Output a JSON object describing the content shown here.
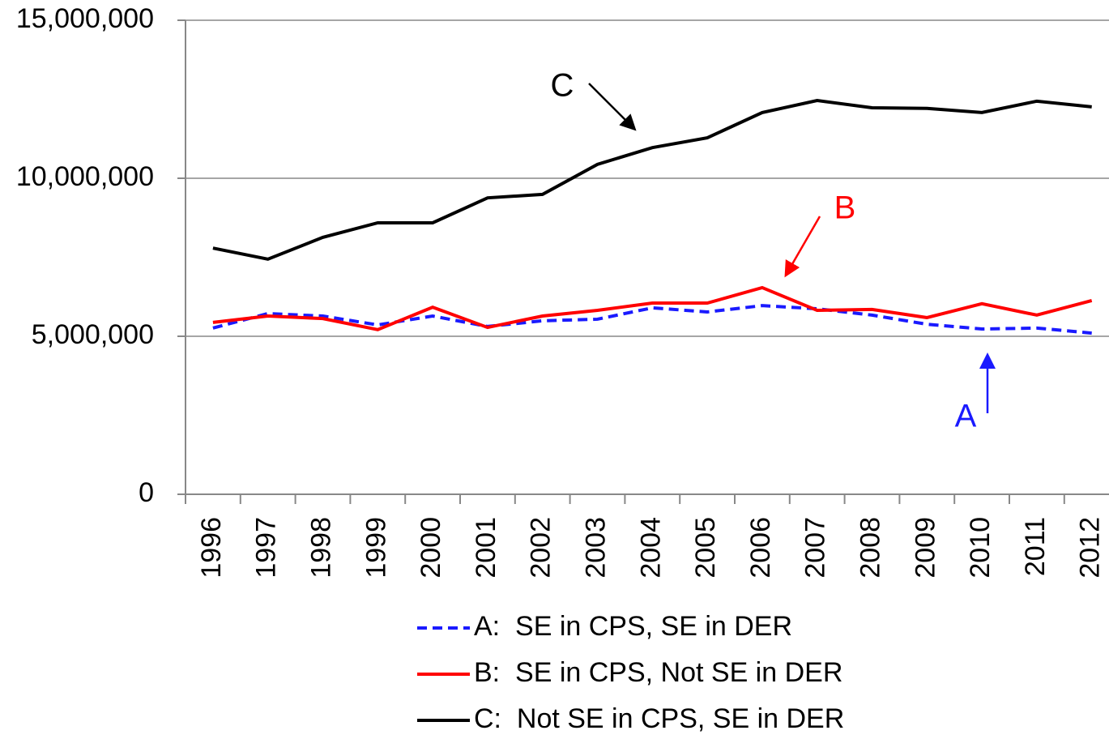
{
  "chart_data": {
    "type": "line",
    "categories": [
      "1996",
      "1997",
      "1998",
      "1999",
      "2000",
      "2001",
      "2002",
      "2003",
      "2004",
      "2005",
      "2006",
      "2007",
      "2008",
      "2009",
      "2010",
      "2011",
      "2012"
    ],
    "series": [
      {
        "name": "A:  SE in CPS, SE in DER",
        "color": "#1a1aff",
        "style": "dashed",
        "values": [
          5260000,
          5720000,
          5640000,
          5360000,
          5640000,
          5310000,
          5490000,
          5540000,
          5900000,
          5770000,
          5970000,
          5870000,
          5670000,
          5380000,
          5230000,
          5260000,
          5100000
        ]
      },
      {
        "name": "B:  SE in CPS, Not SE in DER",
        "color": "#ff0000",
        "style": "solid",
        "values": [
          5440000,
          5640000,
          5560000,
          5210000,
          5920000,
          5280000,
          5640000,
          5820000,
          6050000,
          6050000,
          6540000,
          5820000,
          5850000,
          5590000,
          6030000,
          5670000,
          6130000
        ]
      },
      {
        "name": "C:  Not SE in CPS, SE in DER",
        "color": "#000000",
        "style": "solid",
        "values": [
          7790000,
          7440000,
          8130000,
          8590000,
          8590000,
          9380000,
          9490000,
          10440000,
          10970000,
          11280000,
          12080000,
          12460000,
          12230000,
          12210000,
          12080000,
          12440000,
          12260000
        ]
      }
    ],
    "ylim": [
      0,
      15000000
    ],
    "yticks": [
      0,
      {
        "value": 5000000,
        "label": "5,000,000"
      },
      {
        "value": 10000000,
        "label": "10,000,000"
      },
      {
        "value": 15000000,
        "label": "15,000,000"
      }
    ],
    "grid": true,
    "annotations": [
      {
        "text": "C",
        "color": "#000000"
      },
      {
        "text": "B",
        "color": "#ff0000"
      },
      {
        "text": "A",
        "color": "#1a1aff"
      }
    ]
  }
}
